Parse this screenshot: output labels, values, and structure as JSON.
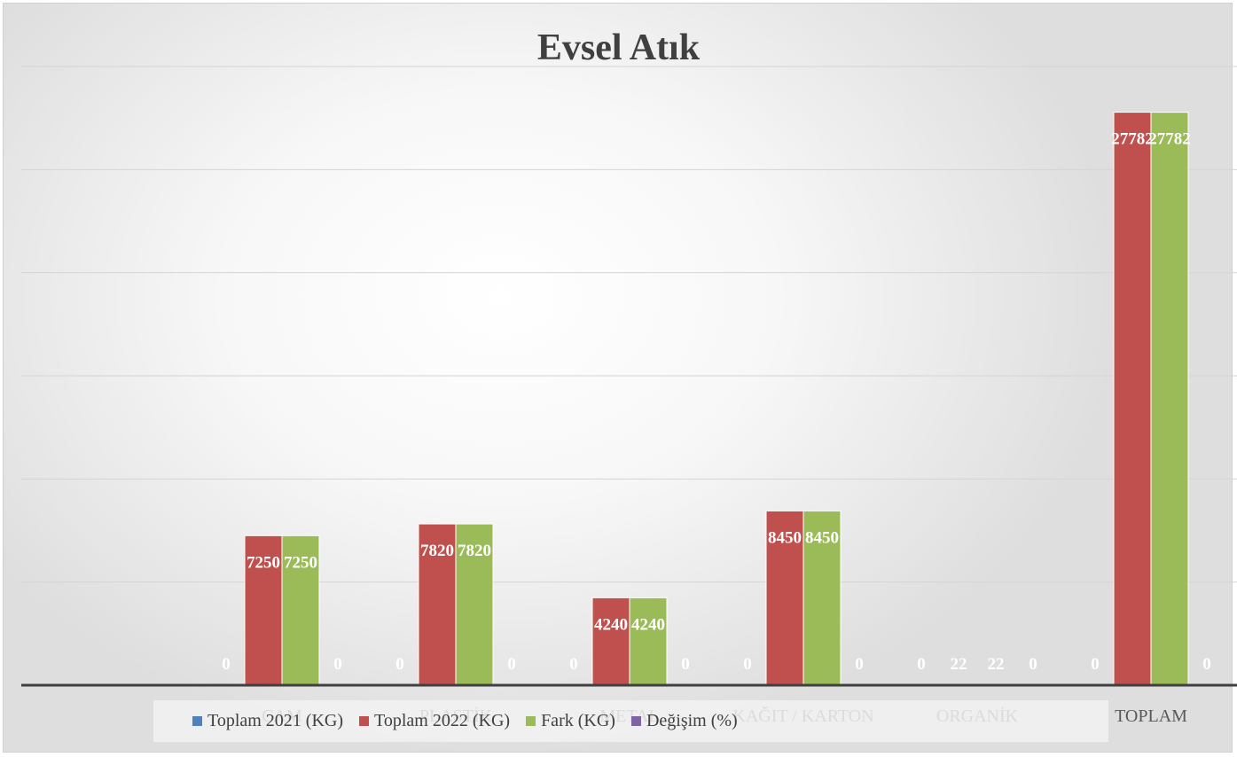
{
  "chart_data": {
    "type": "bar",
    "title": "Evsel Atık",
    "xlabel": "",
    "ylabel": "",
    "categories": [
      "CAM",
      "PLASTİK",
      "METAL",
      "KAĞIT / KARTON",
      "ORGANİK",
      "TOPLAM"
    ],
    "ylim": [
      0,
      30000
    ],
    "grid": true,
    "legend_position": "bottom",
    "series": [
      {
        "name": "Toplam 2021 (KG)",
        "color": "#4f81bd",
        "values": [
          0,
          0,
          0,
          0,
          0,
          0
        ],
        "labels": [
          "0",
          "0",
          "0",
          "0",
          "0",
          "0"
        ]
      },
      {
        "name": "Toplam 2022 (KG)",
        "color": "#c0504d",
        "values": [
          7250,
          7820,
          4240,
          8450,
          22,
          27782
        ],
        "labels": [
          "7250",
          "7820",
          "4240",
          "8450",
          "22",
          "27782"
        ]
      },
      {
        "name": "Fark (KG)",
        "color": "#9bbb59",
        "values": [
          7250,
          7820,
          4240,
          8450,
          22,
          27782
        ],
        "labels": [
          "7250",
          "7820",
          "4240",
          "8450",
          "22",
          "27782"
        ]
      },
      {
        "name": "Değişim (%)",
        "color": "#8064a2",
        "values": [
          0,
          0,
          0,
          0,
          0,
          0
        ],
        "labels": [
          "0",
          "0",
          "0",
          "0",
          "0",
          "0"
        ]
      }
    ]
  }
}
